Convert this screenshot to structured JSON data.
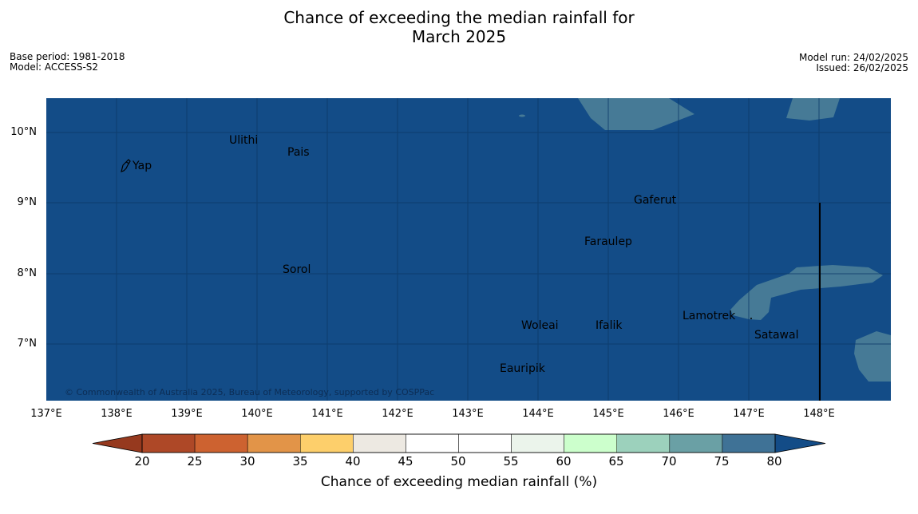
{
  "title": {
    "line1": "Chance of exceeding the median rainfall for",
    "line2": "March 2025"
  },
  "meta_left": {
    "base_period": "Base period: 1981-2018",
    "model": "Model: ACCESS-S2"
  },
  "meta_right": {
    "model_run": "Model run: 24/02/2025",
    "issued": "Issued: 26/02/2025"
  },
  "map": {
    "ocean_color": "#134c87",
    "highlight_color": "#467a96",
    "copyright": "© Commonwealth of Australia 2025, Bureau of Meteorology, supported by COSPPac",
    "lat_labels": [
      "10°N",
      "9°N",
      "8°N",
      "7°N"
    ],
    "lon_labels": [
      "137°E",
      "138°E",
      "139°E",
      "140°E",
      "141°E",
      "142°E",
      "143°E",
      "144°E",
      "145°E",
      "146°E",
      "147°E",
      "148°E"
    ],
    "places": {
      "yap": "Yap",
      "ulithi": "Ulithi",
      "pais": "Pais",
      "gaferut": "Gaferut",
      "faraulep": "Faraulep",
      "sorol": "Sorol",
      "lamotrek": "Lamotrek",
      "woleai": "Woleai",
      "ifalik": "Ifalik",
      "satawal": "Satawal",
      "eauripik": "Eauripik"
    }
  },
  "colorbar": {
    "title": "Chance of exceeding median rainfall (%)",
    "ticks": [
      "20",
      "25",
      "30",
      "35",
      "40",
      "45",
      "50",
      "55",
      "60",
      "65",
      "70",
      "75",
      "80"
    ],
    "colors": [
      "#ae4827",
      "#cd6230",
      "#e29448",
      "#fdcf6b",
      "#ede9e2",
      "#ffffff",
      "#ffffff",
      "#ebf4eb",
      "#ccffcc",
      "#9cd1bc",
      "#6aa0a5",
      "#3f7296"
    ],
    "under_color": "#96391e",
    "over_color": "#134c87"
  }
}
